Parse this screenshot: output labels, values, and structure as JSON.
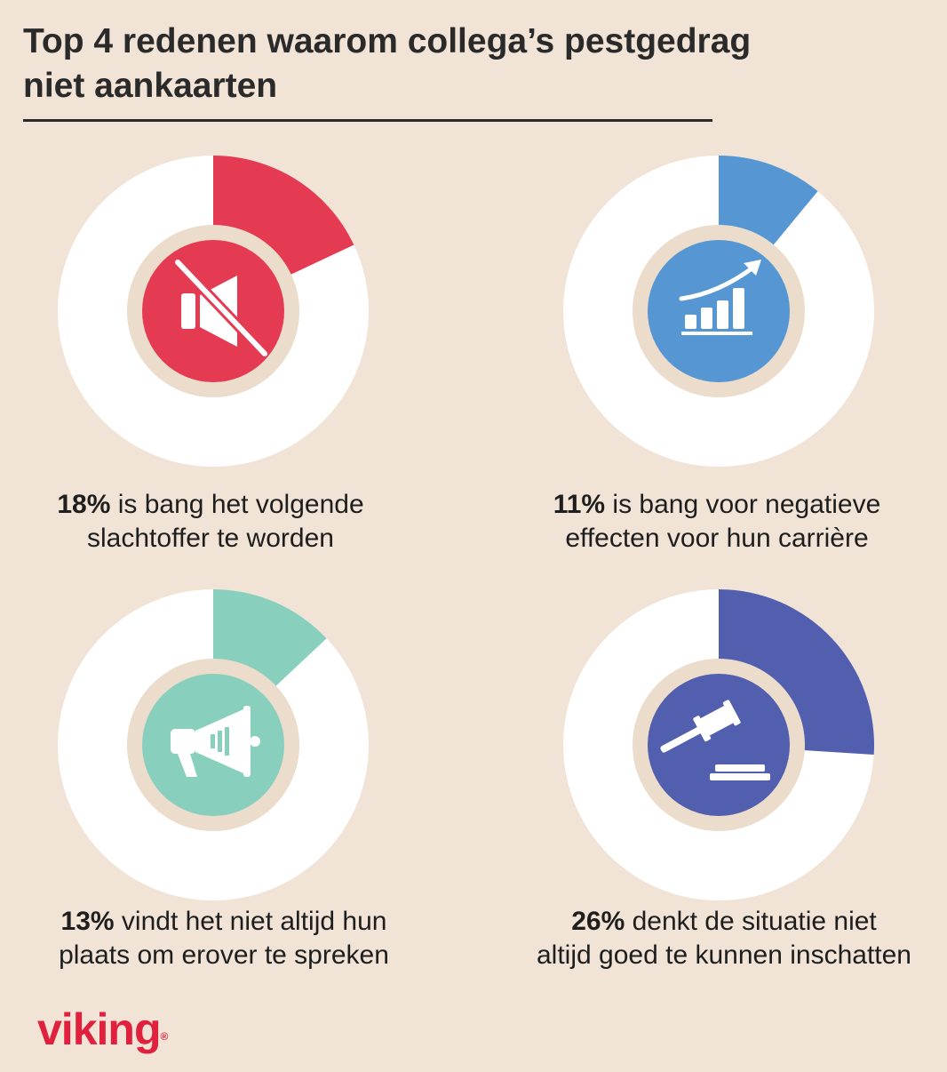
{
  "title_line1": "Top 4 redenen waarom collega’s pestgedrag",
  "title_line2": "niet aankaarten",
  "chart_data": [
    {
      "type": "pie",
      "value": 18,
      "unit": "%",
      "label_bold": "18%",
      "label_line1": " is bang het volgende",
      "label_line2": "slachtoffer te worden",
      "color": "#e43a52",
      "icon": "mute-speaker-icon"
    },
    {
      "type": "pie",
      "value": 11,
      "unit": "%",
      "label_bold": "11%",
      "label_line1": " is bang voor negatieve",
      "label_line2": "effecten voor hun carrière",
      "color": "#5696d3",
      "icon": "growth-chart-icon"
    },
    {
      "type": "pie",
      "value": 13,
      "unit": "%",
      "label_bold": "13%",
      "label_line1": " vindt het niet altijd hun",
      "label_line2": "plaats om erover te spreken",
      "color": "#88d0bd",
      "icon": "megaphone-icon"
    },
    {
      "type": "pie",
      "value": 26,
      "unit": "%",
      "label_bold": "26%",
      "label_line1": " denkt de situatie niet",
      "label_line2": "altijd goed te kunnen inschatten",
      "color": "#525eae",
      "icon": "gavel-icon"
    }
  ],
  "colors": {
    "background": "#f1e4d6",
    "ring": "#ffffff",
    "gap": "#ecdccb",
    "logo": "#e0203d"
  },
  "logo_text": "viking",
  "logo_mark": "®"
}
